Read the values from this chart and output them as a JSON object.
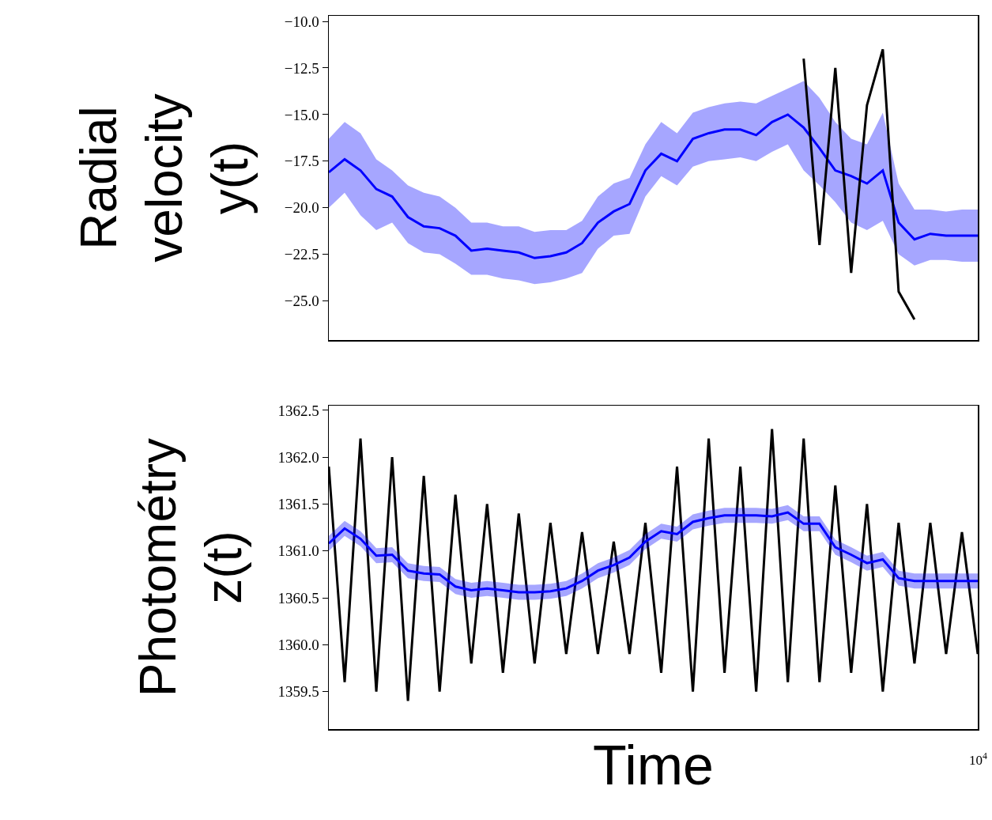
{
  "chart_data": [
    {
      "type": "line",
      "ylabel": "Radial\nvelocity\ny(t)",
      "categories": [
        null,
        null,
        null,
        null,
        null,
        null,
        null,
        null,
        null,
        null,
        null,
        null,
        null,
        null,
        null,
        null,
        null,
        null,
        null,
        null,
        null,
        null,
        null,
        null,
        null,
        null,
        null,
        null,
        null,
        null,
        null,
        null,
        null,
        null,
        null,
        null,
        null,
        null,
        null,
        null,
        null,
        null
      ],
      "ylim": [
        -27.1,
        -9.7
      ],
      "yticks": [
        {
          "value": -10,
          "label": "−10.0"
        },
        {
          "value": -12.5,
          "label": "−12.5"
        },
        {
          "value": -15,
          "label": "−15.0"
        },
        {
          "value": -17.5,
          "label": "−17.5"
        },
        {
          "value": -20,
          "label": "−20.0"
        },
        {
          "value": -22.5,
          "label": "−22.5"
        },
        {
          "value": -25,
          "label": "−25.0"
        }
      ],
      "tick_labels": "y",
      "series": [
        {
          "color": "#0000ff",
          "values": [
            -18.1,
            -17.4,
            -18.0,
            -19.0,
            -19.4,
            -20.5,
            -21.0,
            -21.1,
            -21.5,
            -22.3,
            -22.2,
            -22.3,
            -22.4,
            -22.7,
            -22.6,
            -22.4,
            -21.9,
            -20.8,
            -20.2,
            -19.8,
            -18.0,
            -17.1,
            -17.5,
            -16.3,
            -16.0,
            -15.8,
            -15.8,
            -16.1,
            -15.4,
            -15.0,
            -15.7,
            -16.8,
            -18.0,
            -18.3,
            -18.7,
            -18.0,
            -20.8,
            -21.7,
            -21.4,
            -21.5,
            -21.5,
            -21.5
          ],
          "lower": [
            -20.0,
            -19.2,
            -20.4,
            -21.2,
            -20.8,
            -21.9,
            -22.4,
            -22.5,
            -23.0,
            -23.6,
            -23.6,
            -23.8,
            -23.9,
            -24.1,
            -24.0,
            -23.8,
            -23.5,
            -22.2,
            -21.5,
            -21.4,
            -19.4,
            -18.3,
            -18.8,
            -17.8,
            -17.5,
            -17.4,
            -17.3,
            -17.5,
            -17.0,
            -16.6,
            -18.0,
            -18.8,
            -19.7,
            -20.8,
            -21.2,
            -20.7,
            -22.5,
            -23.1,
            -22.8,
            -22.8,
            -22.9,
            -22.9
          ],
          "upper": [
            -16.3,
            -15.4,
            -16.0,
            -17.4,
            -18.0,
            -18.8,
            -19.2,
            -19.4,
            -20.0,
            -20.8,
            -20.8,
            -21.0,
            -21.0,
            -21.3,
            -21.2,
            -21.2,
            -20.7,
            -19.4,
            -18.7,
            -18.4,
            -16.6,
            -15.4,
            -16.0,
            -14.9,
            -14.6,
            -14.4,
            -14.3,
            -14.4,
            -14.0,
            -13.6,
            -13.2,
            -14.1,
            -15.4,
            -16.3,
            -16.6,
            -14.9,
            -18.7,
            -20.1,
            -20.1,
            -20.2,
            -20.1,
            -20.1
          ]
        },
        {
          "color": "#000000",
          "values": [
            null,
            null,
            null,
            null,
            null,
            null,
            null,
            null,
            null,
            null,
            null,
            null,
            null,
            null,
            null,
            null,
            null,
            null,
            null,
            null,
            null,
            null,
            null,
            null,
            null,
            null,
            null,
            null,
            null,
            null,
            -12.0,
            -22.0,
            -12.5,
            -23.5,
            -14.5,
            -11.5,
            -24.5,
            -26.0,
            null,
            null,
            null,
            null
          ]
        }
      ]
    },
    {
      "type": "line",
      "ylabel": "Photométry\nz(t)",
      "xlabel": "Time",
      "annotations": [
        "10$^{4}$"
      ],
      "categories": [
        null,
        null,
        null,
        null,
        null,
        null,
        null,
        null,
        null,
        null,
        null,
        null,
        null,
        null,
        null,
        null,
        null,
        null,
        null,
        null,
        null,
        null,
        null,
        null,
        null,
        null,
        null,
        null,
        null,
        null,
        null,
        null,
        null,
        null,
        null,
        null,
        null,
        null,
        null,
        null,
        null,
        null
      ],
      "ylim": [
        1359.1,
        1362.55
      ],
      "yticks": [
        {
          "value": 1359.5,
          "label": "1359.5"
        },
        {
          "value": 1360,
          "label": "1360.0"
        },
        {
          "value": 1360.5,
          "label": "1360.5"
        },
        {
          "value": 1361,
          "label": "1361.0"
        },
        {
          "value": 1361.5,
          "label": "1361.5"
        },
        {
          "value": 1362,
          "label": "1362.0"
        },
        {
          "value": 1362.5,
          "label": "1362.5"
        }
      ],
      "tick_labels": "y",
      "series": [
        {
          "color": "#000000",
          "values": [
            1361.9,
            1359.6,
            1362.2,
            1359.5,
            1362.0,
            1359.4,
            1361.8,
            1359.5,
            1361.6,
            1359.8,
            1361.5,
            1359.7,
            1361.4,
            1359.8,
            1361.3,
            1359.9,
            1361.2,
            1359.9,
            1361.1,
            1359.9,
            1361.3,
            1359.7,
            1361.9,
            1359.5,
            1362.2,
            1359.7,
            1361.9,
            1359.5,
            1362.3,
            1359.6,
            1362.2,
            1359.6,
            1361.7,
            1359.7,
            1361.5,
            1359.5,
            1361.3,
            1359.8,
            1361.3,
            1359.9,
            1361.2,
            1359.9
          ]
        },
        {
          "color": "#0000ff",
          "values": [
            1361.08,
            1361.24,
            1361.13,
            1360.95,
            1360.96,
            1360.79,
            1360.76,
            1360.75,
            1360.62,
            1360.58,
            1360.6,
            1360.58,
            1360.56,
            1360.56,
            1360.57,
            1360.6,
            1360.68,
            1360.79,
            1360.85,
            1360.93,
            1361.1,
            1361.21,
            1361.18,
            1361.31,
            1361.35,
            1361.38,
            1361.38,
            1361.38,
            1361.37,
            1361.41,
            1361.29,
            1361.29,
            1361.04,
            1360.96,
            1360.87,
            1360.91,
            1360.71,
            1360.68,
            1360.68,
            1360.68,
            1360.68,
            1360.68
          ],
          "lower": [
            1361.0,
            1361.16,
            1361.05,
            1360.87,
            1360.88,
            1360.71,
            1360.68,
            1360.67,
            1360.54,
            1360.5,
            1360.52,
            1360.5,
            1360.48,
            1360.48,
            1360.49,
            1360.52,
            1360.6,
            1360.71,
            1360.77,
            1360.85,
            1361.02,
            1361.13,
            1361.1,
            1361.23,
            1361.27,
            1361.3,
            1361.3,
            1361.3,
            1361.29,
            1361.33,
            1361.21,
            1361.21,
            1360.96,
            1360.88,
            1360.79,
            1360.83,
            1360.63,
            1360.6,
            1360.6,
            1360.6,
            1360.6,
            1360.6
          ],
          "upper": [
            1361.16,
            1361.32,
            1361.21,
            1361.03,
            1361.04,
            1360.87,
            1360.84,
            1360.83,
            1360.7,
            1360.66,
            1360.68,
            1360.66,
            1360.64,
            1360.64,
            1360.65,
            1360.68,
            1360.76,
            1360.87,
            1360.93,
            1361.01,
            1361.18,
            1361.29,
            1361.26,
            1361.39,
            1361.43,
            1361.46,
            1361.46,
            1361.46,
            1361.45,
            1361.49,
            1361.37,
            1361.37,
            1361.12,
            1361.04,
            1360.95,
            1360.99,
            1360.79,
            1360.76,
            1360.76,
            1360.76,
            1360.76,
            1360.76
          ]
        }
      ]
    }
  ]
}
